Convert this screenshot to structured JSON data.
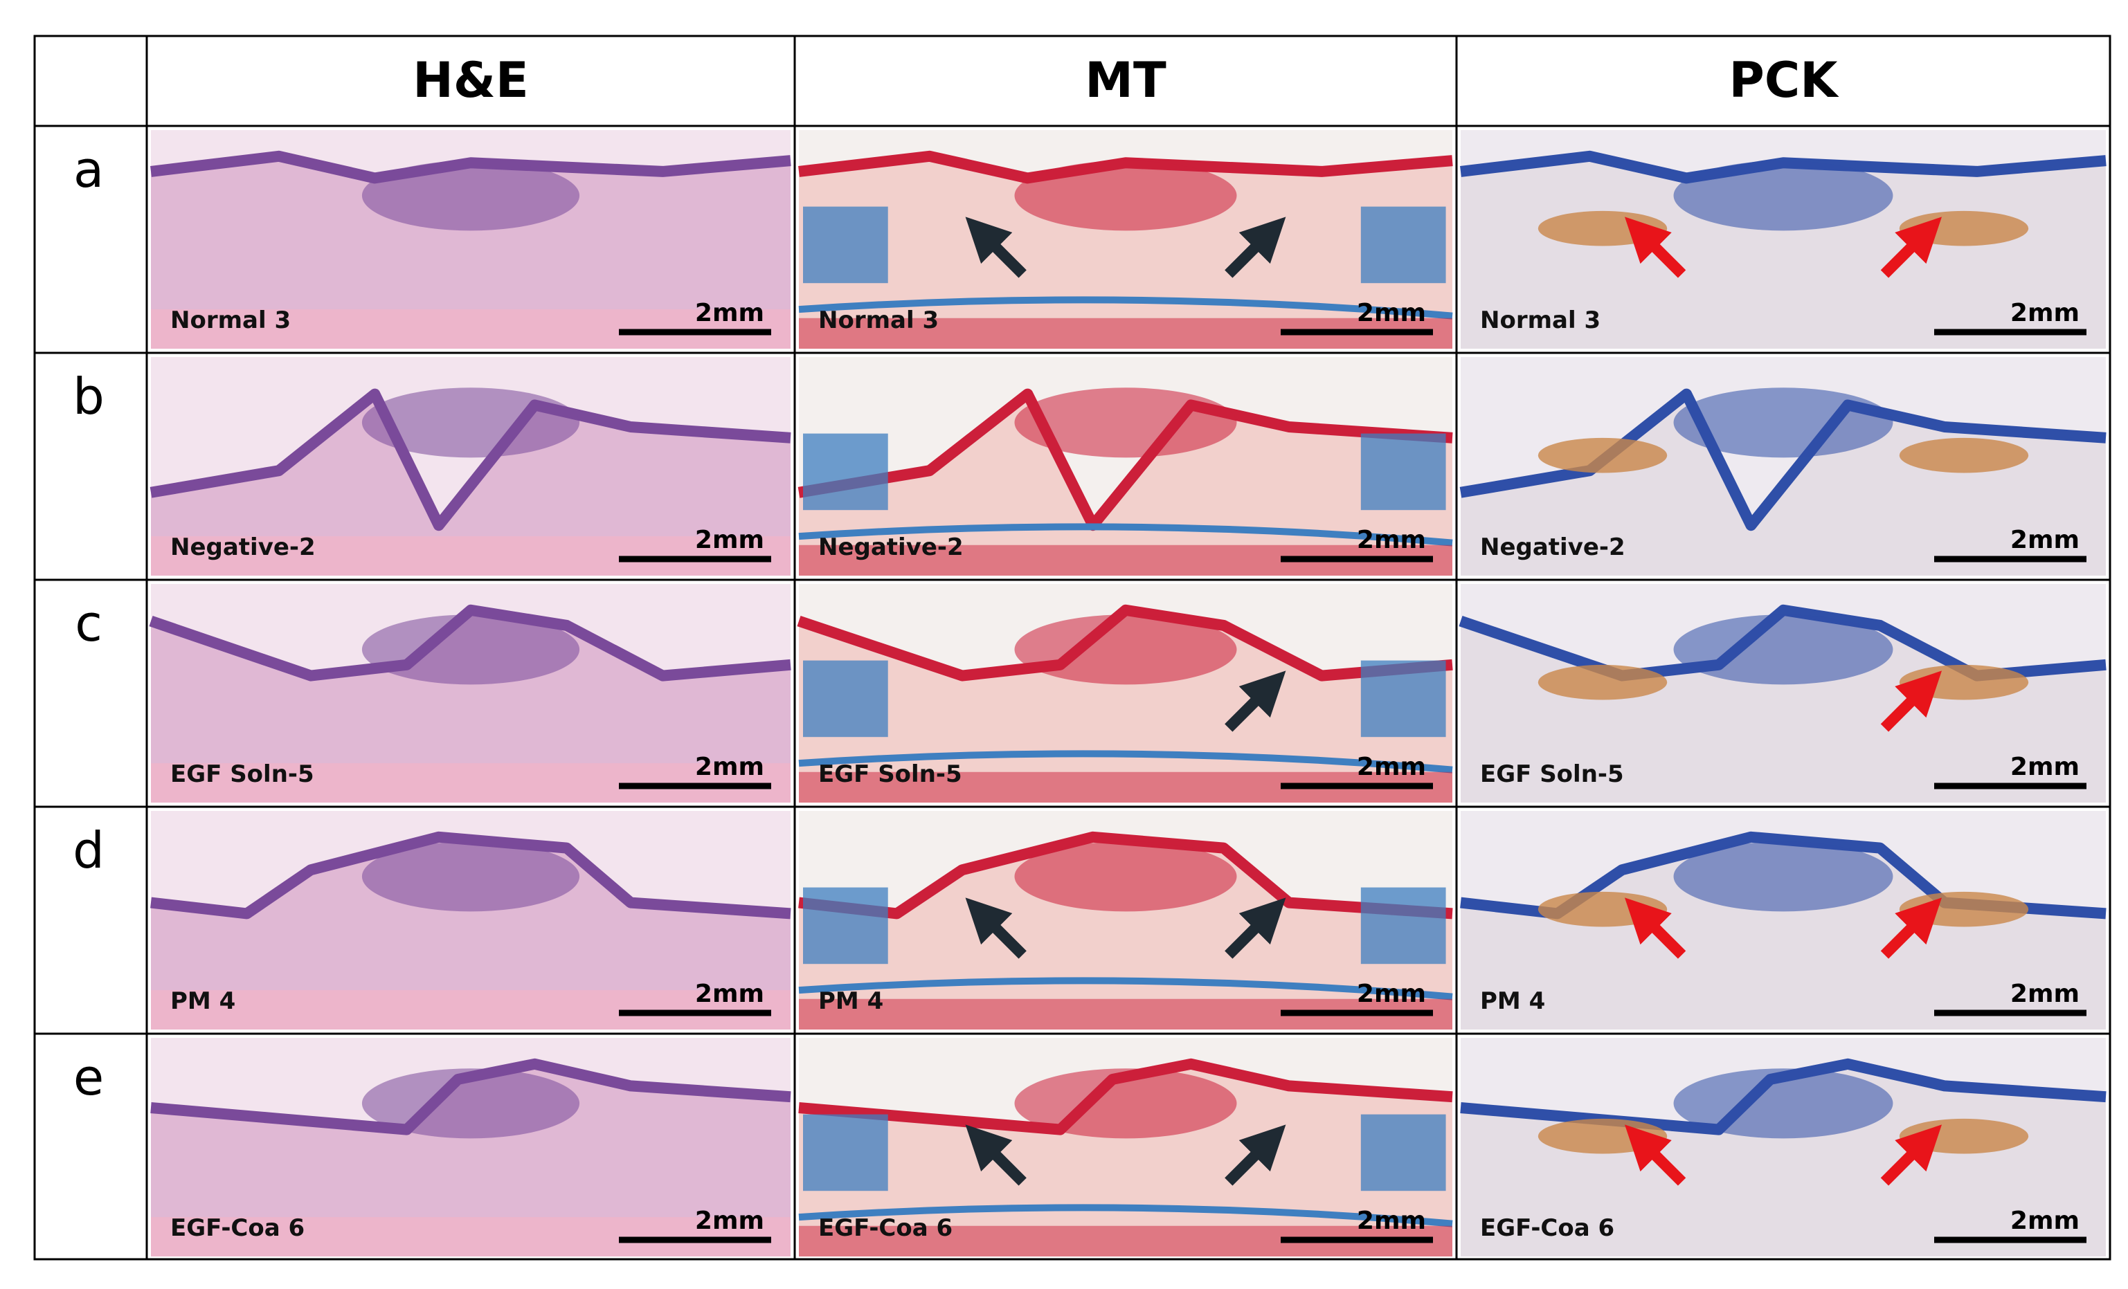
{
  "columns": [
    {
      "label": "H&E",
      "stain": "he"
    },
    {
      "label": "MT",
      "stain": "mt"
    },
    {
      "label": "PCK",
      "stain": "pck"
    }
  ],
  "rows": [
    {
      "label": "a",
      "samples": [
        "Normal 3",
        "Normal 3",
        "Normal 3"
      ]
    },
    {
      "label": "b",
      "samples": [
        "Negative-2",
        "Negative-2",
        "Negative-2"
      ]
    },
    {
      "label": "c",
      "samples": [
        "EGF Soln-5",
        "EGF Soln-5",
        "EGF Soln-5"
      ]
    },
    {
      "label": "d",
      "samples": [
        "PM 4",
        "PM 4",
        "PM 4"
      ]
    },
    {
      "label": "e",
      "samples": [
        "EGF-Coa 6",
        "EGF-Coa 6",
        "EGF-Coa 6"
      ]
    }
  ],
  "scale_bar_label": "2mm",
  "arrow_colors": {
    "mt": "#1f2a33",
    "pck": "#e8141a"
  },
  "stain_colors": {
    "he": {
      "bg": "#f3e4ee",
      "tissue": "#e0b8d4",
      "dark": "#7a4a9a",
      "muscle": "#f0b4c8"
    },
    "mt": {
      "bg": "#f4f0ee",
      "tissue": "#f2d0cc",
      "dark": "#cc1f3a",
      "blue": "#3f7fc0"
    },
    "pck": {
      "bg": "#eeeaf0",
      "tissue": "#e4dde4",
      "dark": "#2f4fa8",
      "brown": "#c9874a"
    }
  },
  "arrows": {
    "a": {
      "mt": 2,
      "pck": 2
    },
    "c": {
      "mt": 1,
      "pck": 1
    },
    "d": {
      "mt": 2,
      "pck": 2
    },
    "e": {
      "mt": 2,
      "pck": 2
    }
  }
}
